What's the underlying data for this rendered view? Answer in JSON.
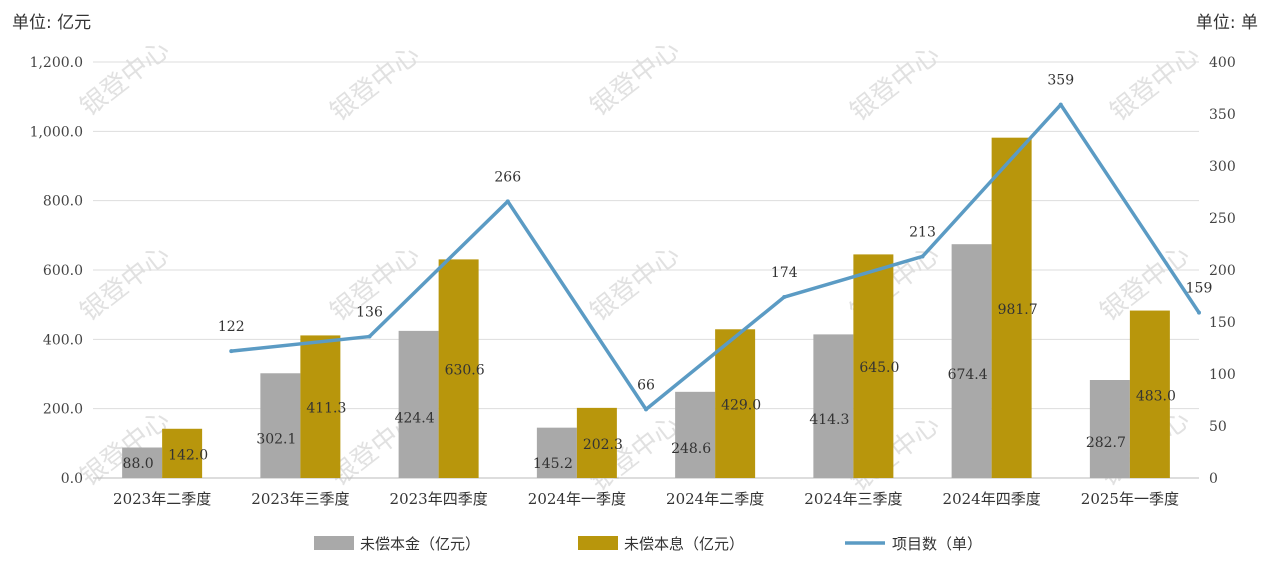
{
  "units": {
    "left": "单位: 亿元",
    "right": "单位: 单"
  },
  "watermark": "银登中心",
  "colors": {
    "principal": "#a9a9a9",
    "interest": "#b8960c",
    "count": "#5b9bc4",
    "grid": "#dddddd"
  },
  "chart_data": {
    "type": "bar",
    "categories": [
      "2023年二季度",
      "2023年三季度",
      "2023年四季度",
      "2024年一季度",
      "2024年二季度",
      "2024年三季度",
      "2024年四季度",
      "2025年一季度"
    ],
    "series": [
      {
        "name": "未偿本金（亿元）",
        "type": "bar",
        "axis": "left",
        "values": [
          88.0,
          302.1,
          424.4,
          145.2,
          248.6,
          414.3,
          674.4,
          282.7
        ]
      },
      {
        "name": "未偿本息（亿元）",
        "type": "bar",
        "axis": "left",
        "values": [
          142.0,
          411.3,
          630.6,
          202.3,
          429.0,
          645.0,
          981.7,
          483.0
        ]
      },
      {
        "name": "项目数（单）",
        "type": "line",
        "axis": "right",
        "values": [
          122,
          136,
          266,
          66,
          174,
          213,
          359,
          159
        ]
      }
    ],
    "y_left": {
      "min": 0,
      "max": 1200,
      "ticks": [
        "0.0",
        "200.0",
        "400.0",
        "600.0",
        "800.0",
        "1,000.0",
        "1,200.0"
      ]
    },
    "y_right": {
      "min": 0,
      "max": 400,
      "ticks": [
        "0",
        "50",
        "100",
        "150",
        "200",
        "250",
        "300",
        "350",
        "400"
      ]
    },
    "grid": true,
    "legend_position": "bottom"
  }
}
